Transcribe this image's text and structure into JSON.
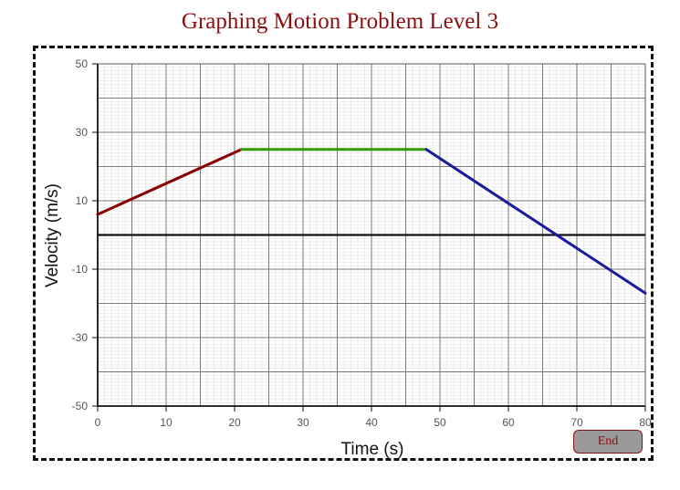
{
  "page": {
    "title": "Graphing Motion Problem Level 3",
    "end_button": "End"
  },
  "chart_data": {
    "type": "line",
    "xlabel": "Time (s)",
    "ylabel": "Velocity (m/s)",
    "xlim": [
      0,
      80
    ],
    "ylim": [
      -50,
      50
    ],
    "x_ticks": [
      0,
      10,
      20,
      30,
      40,
      50,
      60,
      70,
      80
    ],
    "y_ticks": [
      50,
      30,
      10,
      -10,
      -30,
      -50
    ],
    "grid": true,
    "series": [
      {
        "color": "#8b0000",
        "points": [
          [
            0,
            6
          ],
          [
            21,
            25
          ]
        ]
      },
      {
        "color": "#2e9b00",
        "points": [
          [
            21,
            25
          ],
          [
            48,
            25
          ]
        ]
      },
      {
        "color": "#1a1a9c",
        "points": [
          [
            48,
            25
          ],
          [
            80,
            -17
          ]
        ]
      }
    ],
    "reference_line": {
      "y": 0,
      "color": "#111111"
    }
  }
}
